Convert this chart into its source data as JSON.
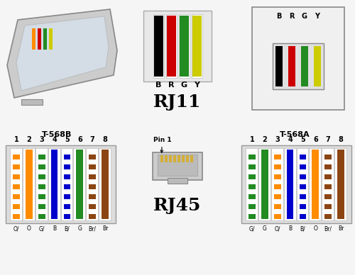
{
  "bg_color": "#f5f5f5",
  "rj11_label": "RJ11",
  "rj45_label": "RJ45",
  "t568b_label": "T-568B",
  "t568a_label": "T-568A",
  "pin1_label": "Pin 1",
  "rj11_wire_colors": [
    "#000000",
    "#cc0000",
    "#228B22",
    "#cccc00"
  ],
  "rj11_wire_labels": [
    "B",
    "R",
    "G",
    "Y"
  ],
  "t568b_wires": [
    {
      "main": "#ff8c00",
      "stripe": true,
      "stripe_color": "#ffffff",
      "label": "O/"
    },
    {
      "main": "#ff8c00",
      "stripe": false,
      "stripe_color": null,
      "label": "O"
    },
    {
      "main": "#228B22",
      "stripe": true,
      "stripe_color": "#ffffff",
      "label": "G/"
    },
    {
      "main": "#0000cc",
      "stripe": false,
      "stripe_color": null,
      "label": "B"
    },
    {
      "main": "#0000cc",
      "stripe": true,
      "stripe_color": "#ffffff",
      "label": "B/"
    },
    {
      "main": "#228B22",
      "stripe": false,
      "stripe_color": null,
      "label": "G"
    },
    {
      "main": "#8B4513",
      "stripe": true,
      "stripe_color": "#ffffff",
      "label": "Br/"
    },
    {
      "main": "#8B4513",
      "stripe": false,
      "stripe_color": null,
      "label": "Br"
    }
  ],
  "t568a_wires": [
    {
      "main": "#228B22",
      "stripe": true,
      "stripe_color": "#ffffff",
      "label": "G/"
    },
    {
      "main": "#228B22",
      "stripe": false,
      "stripe_color": null,
      "label": "G"
    },
    {
      "main": "#ff8c00",
      "stripe": true,
      "stripe_color": "#ffffff",
      "label": "O/"
    },
    {
      "main": "#0000cc",
      "stripe": false,
      "stripe_color": null,
      "label": "B"
    },
    {
      "main": "#0000cc",
      "stripe": true,
      "stripe_color": "#ffffff",
      "label": "B/"
    },
    {
      "main": "#ff8c00",
      "stripe": false,
      "stripe_color": null,
      "label": "O"
    },
    {
      "main": "#8B4513",
      "stripe": true,
      "stripe_color": "#ffffff",
      "label": "Br/"
    },
    {
      "main": "#8B4513",
      "stripe": false,
      "stripe_color": null,
      "label": "Br"
    }
  ],
  "layout": {
    "fig_w": 5.0,
    "fig_h": 3.88,
    "dpi": 100
  }
}
